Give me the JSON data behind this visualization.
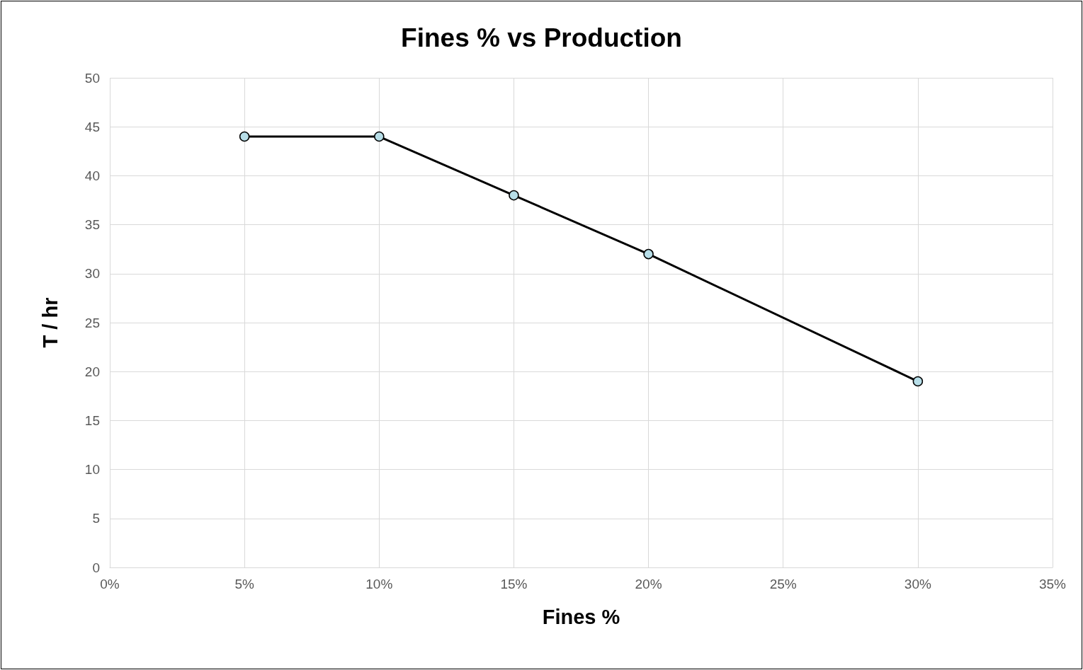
{
  "chart_data": {
    "type": "line",
    "title": "Fines % vs Production",
    "xlabel": "Fines %",
    "ylabel": "T / hr",
    "x": [
      5,
      10,
      15,
      20,
      30
    ],
    "series": [
      {
        "color": "#000000",
        "colors": [
          "#b7dee8",
          "#b7dee8",
          "#b7dee8",
          "#b7dee8",
          "#b7dee8"
        ],
        "values": [
          44,
          44,
          38,
          32,
          19
        ]
      }
    ],
    "xlim": [
      0,
      35
    ],
    "xticks": [
      {
        "value": 0,
        "label": "0%"
      },
      {
        "value": 5,
        "label": "5%"
      },
      {
        "value": 10,
        "label": "10%"
      },
      {
        "value": 15,
        "label": "15%"
      },
      {
        "value": 20,
        "label": "20%"
      },
      {
        "value": 25,
        "label": "25%"
      },
      {
        "value": 30,
        "label": "30%"
      },
      {
        "value": 35,
        "label": "35%"
      }
    ],
    "ylim": [
      0,
      50
    ],
    "yticks": [
      0,
      5,
      10,
      15,
      20,
      25,
      30,
      35,
      40,
      45,
      50
    ],
    "grid": true,
    "marker": "circle",
    "line_style": "solid"
  }
}
